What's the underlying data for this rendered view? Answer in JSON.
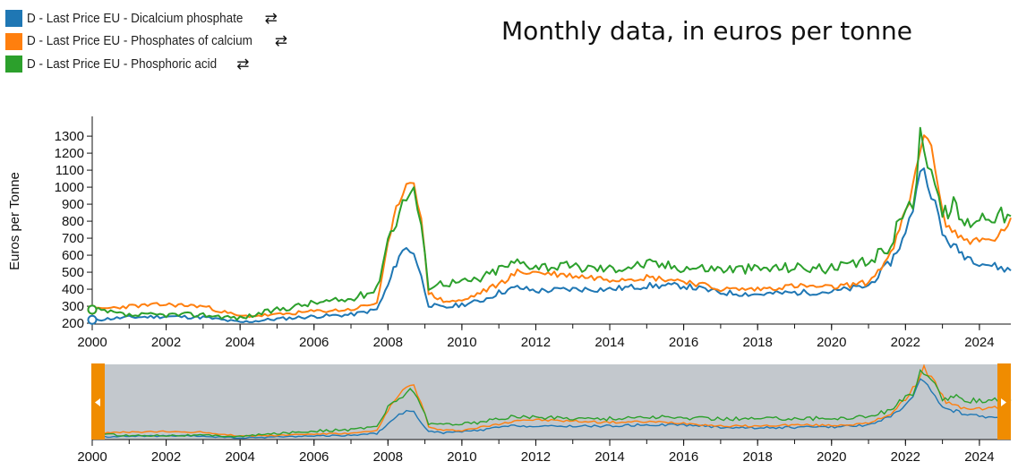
{
  "legend": [
    {
      "label": "D - Last Price EU - Dicalcium phosphate",
      "color": "#1f77b4",
      "icon": "swap-arrows-icon"
    },
    {
      "label": "D - Last Price EU - Phosphates of calcium",
      "color": "#ff7f0e",
      "icon": "swap-arrows-icon"
    },
    {
      "label": "D - Last Price EU - Phosphoric acid",
      "color": "#2ca02c",
      "icon": "swap-arrows-icon"
    }
  ],
  "chart_title": "Monthly data, in euros per tonne",
  "chart_data": {
    "type": "line",
    "title": "Monthly data, in euros per tonne",
    "ylabel": "Euros per Tonne",
    "xlabel": "",
    "xlim": [
      2000.0,
      2024.85
    ],
    "ylim": [
      195,
      1390
    ],
    "x_ticks": [
      "2000",
      "2002",
      "2004",
      "2006",
      "2008",
      "2010",
      "2012",
      "2014",
      "2016",
      "2018",
      "2020",
      "2022",
      "2024"
    ],
    "y_ticks": [
      "200",
      "300",
      "400",
      "500",
      "600",
      "700",
      "800",
      "900",
      "1000",
      "1100",
      "1200",
      "1300"
    ],
    "grid": false,
    "legend_position": "top-left",
    "navigator": {
      "present": true,
      "range": [
        2000.0,
        2024.85
      ]
    },
    "series": [
      {
        "name": "D - Last Price EU - Dicalcium phosphate",
        "color": "#1f77b4",
        "points": [
          [
            2000.0,
            220
          ],
          [
            2001.0,
            235
          ],
          [
            2002.0,
            240
          ],
          [
            2003.0,
            235
          ],
          [
            2004.0,
            205
          ],
          [
            2005.0,
            225
          ],
          [
            2006.0,
            240
          ],
          [
            2007.0,
            250
          ],
          [
            2007.7,
            280
          ],
          [
            2008.0,
            420
          ],
          [
            2008.3,
            600
          ],
          [
            2008.5,
            640
          ],
          [
            2008.7,
            620
          ],
          [
            2008.9,
            470
          ],
          [
            2009.1,
            310
          ],
          [
            2009.5,
            290
          ],
          [
            2010.0,
            310
          ],
          [
            2010.5,
            330
          ],
          [
            2011.0,
            380
          ],
          [
            2011.5,
            410
          ],
          [
            2012.0,
            390
          ],
          [
            2013.0,
            400
          ],
          [
            2014.0,
            400
          ],
          [
            2015.0,
            420
          ],
          [
            2016.0,
            420
          ],
          [
            2017.0,
            380
          ],
          [
            2018.0,
            370
          ],
          [
            2019.0,
            380
          ],
          [
            2020.0,
            385
          ],
          [
            2021.0,
            420
          ],
          [
            2021.6,
            560
          ],
          [
            2022.0,
            720
          ],
          [
            2022.2,
            880
          ],
          [
            2022.4,
            1120
          ],
          [
            2022.6,
            1050
          ],
          [
            2022.8,
            900
          ],
          [
            2023.0,
            720
          ],
          [
            2023.3,
            650
          ],
          [
            2023.6,
            600
          ],
          [
            2024.0,
            560
          ],
          [
            2024.5,
            530
          ],
          [
            2024.85,
            510
          ]
        ]
      },
      {
        "name": "D - Last Price EU - Phosphates of calcium",
        "color": "#ff7f0e",
        "points": [
          [
            2000.0,
            280
          ],
          [
            2001.0,
            300
          ],
          [
            2002.0,
            310
          ],
          [
            2003.0,
            300
          ],
          [
            2004.0,
            240
          ],
          [
            2005.0,
            250
          ],
          [
            2006.0,
            270
          ],
          [
            2007.0,
            280
          ],
          [
            2007.7,
            320
          ],
          [
            2008.0,
            650
          ],
          [
            2008.3,
            930
          ],
          [
            2008.5,
            1020
          ],
          [
            2008.7,
            1060
          ],
          [
            2008.9,
            800
          ],
          [
            2009.1,
            380
          ],
          [
            2009.5,
            330
          ],
          [
            2010.0,
            330
          ],
          [
            2010.5,
            380
          ],
          [
            2011.0,
            430
          ],
          [
            2011.5,
            500
          ],
          [
            2012.0,
            500
          ],
          [
            2013.0,
            480
          ],
          [
            2014.0,
            460
          ],
          [
            2015.0,
            470
          ],
          [
            2016.0,
            450
          ],
          [
            2017.0,
            400
          ],
          [
            2018.0,
            400
          ],
          [
            2019.0,
            420
          ],
          [
            2020.0,
            410
          ],
          [
            2021.0,
            440
          ],
          [
            2021.6,
            600
          ],
          [
            2022.0,
            850
          ],
          [
            2022.2,
            1000
          ],
          [
            2022.5,
            1340
          ],
          [
            2022.7,
            1200
          ],
          [
            2022.9,
            1000
          ],
          [
            2023.1,
            780
          ],
          [
            2023.5,
            700
          ],
          [
            2024.0,
            680
          ],
          [
            2024.5,
            700
          ],
          [
            2024.85,
            820
          ]
        ]
      },
      {
        "name": "D - Last Price EU - Phosphoric acid",
        "color": "#2ca02c",
        "points": [
          [
            2000.0,
            280
          ],
          [
            2001.0,
            245
          ],
          [
            2002.0,
            250
          ],
          [
            2003.0,
            250
          ],
          [
            2004.0,
            230
          ],
          [
            2005.0,
            280
          ],
          [
            2006.0,
            320
          ],
          [
            2007.0,
            340
          ],
          [
            2007.7,
            400
          ],
          [
            2008.0,
            700
          ],
          [
            2008.3,
            850
          ],
          [
            2008.5,
            950
          ],
          [
            2008.7,
            1000
          ],
          [
            2008.9,
            750
          ],
          [
            2009.1,
            420
          ],
          [
            2009.5,
            440
          ],
          [
            2010.0,
            440
          ],
          [
            2010.5,
            460
          ],
          [
            2011.0,
            520
          ],
          [
            2011.5,
            560
          ],
          [
            2012.0,
            540
          ],
          [
            2013.0,
            530
          ],
          [
            2014.0,
            520
          ],
          [
            2015.0,
            550
          ],
          [
            2016.0,
            530
          ],
          [
            2017.0,
            520
          ],
          [
            2018.0,
            520
          ],
          [
            2019.0,
            530
          ],
          [
            2020.0,
            520
          ],
          [
            2021.0,
            560
          ],
          [
            2021.6,
            660
          ],
          [
            2022.0,
            900
          ],
          [
            2022.2,
            850
          ],
          [
            2022.4,
            1320
          ],
          [
            2022.6,
            1180
          ],
          [
            2022.8,
            1050
          ],
          [
            2023.0,
            830
          ],
          [
            2023.3,
            900
          ],
          [
            2023.6,
            780
          ],
          [
            2024.0,
            830
          ],
          [
            2024.5,
            840
          ],
          [
            2024.85,
            830
          ]
        ]
      }
    ]
  }
}
